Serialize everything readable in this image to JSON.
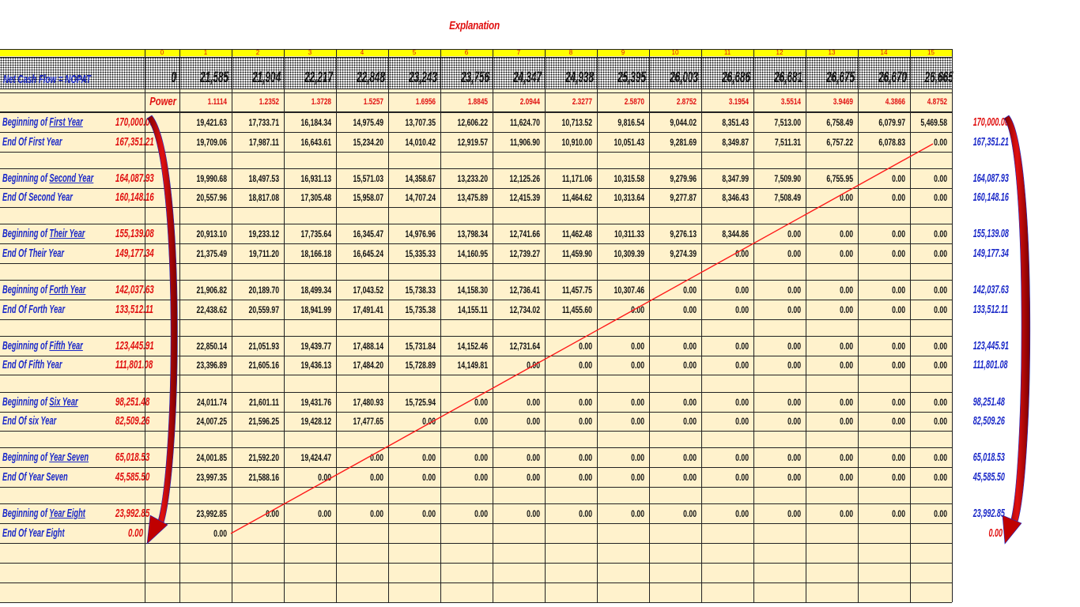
{
  "title": "Explanation",
  "header": {
    "period_numbers": [
      "0",
      "1",
      "2",
      "3",
      "4",
      "5",
      "6",
      "7",
      "8",
      "9",
      "10",
      "11",
      "12",
      "13",
      "14",
      "15"
    ],
    "cashflow_label": "Net Cash Flow = NOPAT",
    "cashflows": [
      "0",
      "21,585",
      "21,904",
      "22,217",
      "22,848",
      "23,243",
      "23,756",
      "24,347",
      "24,938",
      "25,395",
      "26,003",
      "26,686",
      "26,681",
      "26,675",
      "26,670",
      "26,665"
    ],
    "power_label": "Power",
    "powers": [
      "1.1114",
      "1.2352",
      "1.3728",
      "1.5257",
      "1.6956",
      "1.8845",
      "2.0944",
      "2.3277",
      "2.5870",
      "2.8752",
      "3.1954",
      "3.5514",
      "3.9469",
      "4.3866",
      "4.8752"
    ]
  },
  "rows": [
    {
      "prefix": "Beginning of ",
      "name": "First Year",
      "value": "170,000.00",
      "cells": [
        "19,421.63",
        "17,733.71",
        "16,184.34",
        "14,975.49",
        "13,707.35",
        "12,606.22",
        "11,624.70",
        "10,713.52",
        "9,816.54",
        "9,044.02",
        "8,351.43",
        "7,513.00",
        "6,758.49",
        "6,079.97",
        "5,469.58"
      ],
      "ext": "170,000.00",
      "ext_color": "red"
    },
    {
      "prefix": "End Of ",
      "name": "First Year",
      "value": "167,351.21",
      "cells": [
        "19,709.06",
        "17,987.11",
        "16,643.61",
        "15,234.20",
        "14,010.42",
        "12,919.57",
        "11,906.90",
        "10,910.00",
        "10,051.43",
        "9,281.69",
        "8,349.87",
        "7,511.31",
        "6,757.22",
        "6,078.83",
        "0.00"
      ],
      "ext": "167,351.21",
      "ext_color": "blue"
    },
    {
      "prefix": "Beginning of ",
      "name": "Second Year",
      "value": "164,087.93",
      "cells": [
        "19,990.68",
        "18,497.53",
        "16,931.13",
        "15,571.03",
        "14,358.67",
        "13,233.20",
        "12,125.26",
        "11,171.06",
        "10,315.58",
        "9,279.96",
        "8,347.99",
        "7,509.90",
        "6,755.95",
        "0.00",
        "0.00"
      ],
      "ext": "164,087.93",
      "ext_color": "blue"
    },
    {
      "prefix": "End Of ",
      "name": "Second Year",
      "value": "160,148.16",
      "cells": [
        "20,557.96",
        "18,817.08",
        "17,305.48",
        "15,958.07",
        "14,707.24",
        "13,475.89",
        "12,415.39",
        "11,464.62",
        "10,313.64",
        "9,277.87",
        "8,346.43",
        "7,508.49",
        "0.00",
        "0.00",
        "0.00"
      ],
      "ext": "160,148.16",
      "ext_color": "blue"
    },
    {
      "prefix": "Beginning of ",
      "name": "Their Year",
      "value": "155,139.08",
      "cells": [
        "20,913.10",
        "19,233.12",
        "17,735.64",
        "16,345.47",
        "14,976.96",
        "13,798.34",
        "12,741.66",
        "11,462.48",
        "10,311.33",
        "9,276.13",
        "8,344.86",
        "0.00",
        "0.00",
        "0.00",
        "0.00"
      ],
      "ext": "155,139.08",
      "ext_color": "blue"
    },
    {
      "prefix": "End Of ",
      "name": "Their Year",
      "value": "149,177.34",
      "cells": [
        "21,375.49",
        "19,711.20",
        "18,166.18",
        "16,645.24",
        "15,335.33",
        "14,160.95",
        "12,739.27",
        "11,459.90",
        "10,309.39",
        "9,274.39",
        "0.00",
        "0.00",
        "0.00",
        "0.00",
        "0.00"
      ],
      "ext": "149,177.34",
      "ext_color": "blue"
    },
    {
      "prefix": "Beginning of ",
      "name": "Forth Year",
      "value": "142,037.63",
      "cells": [
        "21,906.82",
        "20,189.70",
        "18,499.34",
        "17,043.52",
        "15,738.33",
        "14,158.30",
        "12,736.41",
        "11,457.75",
        "10,307.46",
        "0.00",
        "0.00",
        "0.00",
        "0.00",
        "0.00",
        "0.00"
      ],
      "ext": "142,037.63",
      "ext_color": "blue"
    },
    {
      "prefix": "End Of ",
      "name": "Forth Year",
      "value": "133,512.11",
      "cells": [
        "22,438.62",
        "20,559.97",
        "18,941.99",
        "17,491.41",
        "15,735.38",
        "14,155.11",
        "12,734.02",
        "11,455.60",
        "0.00",
        "0.00",
        "0.00",
        "0.00",
        "0.00",
        "0.00",
        "0.00"
      ],
      "ext": "133,512.11",
      "ext_color": "blue"
    },
    {
      "prefix": "Beginning of ",
      "name": "Fifth Year",
      "value": "123,445.91",
      "cells": [
        "22,850.14",
        "21,051.93",
        "19,439.77",
        "17,488.14",
        "15,731.84",
        "14,152.46",
        "12,731.64",
        "0.00",
        "0.00",
        "0.00",
        "0.00",
        "0.00",
        "0.00",
        "0.00",
        "0.00"
      ],
      "ext": "123,445.91",
      "ext_color": "blue"
    },
    {
      "prefix": "End Of ",
      "name": "Fifth Year",
      "value": "111,801.08",
      "cells": [
        "23,396.89",
        "21,605.16",
        "19,436.13",
        "17,484.20",
        "15,728.89",
        "14,149.81",
        "0.00",
        "0.00",
        "0.00",
        "0.00",
        "0.00",
        "0.00",
        "0.00",
        "0.00",
        "0.00"
      ],
      "ext": "111,801.08",
      "ext_color": "blue"
    },
    {
      "prefix": "Beginning of ",
      "name": "Six Year",
      "value": "98,251.48",
      "cells": [
        "24,011.74",
        "21,601.11",
        "19,431.76",
        "17,480.93",
        "15,725.94",
        "0.00",
        "0.00",
        "0.00",
        "0.00",
        "0.00",
        "0.00",
        "0.00",
        "0.00",
        "0.00",
        "0.00"
      ],
      "ext": "98,251.48",
      "ext_color": "blue"
    },
    {
      "prefix": "End Of ",
      "name": "six Year",
      "value": "82,509.26",
      "cells": [
        "24,007.25",
        "21,596.25",
        "19,428.12",
        "17,477.65",
        "0.00",
        "0.00",
        "0.00",
        "0.00",
        "0.00",
        "0.00",
        "0.00",
        "0.00",
        "0.00",
        "0.00",
        "0.00"
      ],
      "ext": "82,509.26",
      "ext_color": "blue"
    },
    {
      "prefix": "Beginning of ",
      "name": "Year Seven",
      "value": "65,018.53",
      "cells": [
        "24,001.85",
        "21,592.20",
        "19,424.47",
        "0.00",
        "0.00",
        "0.00",
        "0.00",
        "0.00",
        "0.00",
        "0.00",
        "0.00",
        "0.00",
        "0.00",
        "0.00",
        "0.00"
      ],
      "ext": "65,018.53",
      "ext_color": "blue"
    },
    {
      "prefix": "End Of ",
      "name": "Year Seven",
      "value": "45,585.50",
      "cells": [
        "23,997.35",
        "21,588.16",
        "0.00",
        "0.00",
        "0.00",
        "0.00",
        "0.00",
        "0.00",
        "0.00",
        "0.00",
        "0.00",
        "0.00",
        "0.00",
        "0.00",
        "0.00"
      ],
      "ext": "45,585.50",
      "ext_color": "blue"
    },
    {
      "prefix": "Beginning of ",
      "name": "Year Eight",
      "value": "23,992.85",
      "cells": [
        "23,992.85",
        "0.00",
        "0.00",
        "0.00",
        "0.00",
        "0.00",
        "0.00",
        "0.00",
        "0.00",
        "0.00",
        "0.00",
        "0.00",
        "0.00",
        "0.00",
        "0.00"
      ],
      "ext": "23,992.85",
      "ext_color": "blue"
    },
    {
      "prefix": "End Of ",
      "name": "Year Eight",
      "value": "0.00",
      "cells": [
        "0.00"
      ],
      "ext": "0.00",
      "ext_color": "red"
    }
  ],
  "colors": {
    "label_blue": "#1a28c8",
    "value_red": "#e01010",
    "sheet": "#fff2cc",
    "header_yellow": "#ffff00"
  }
}
